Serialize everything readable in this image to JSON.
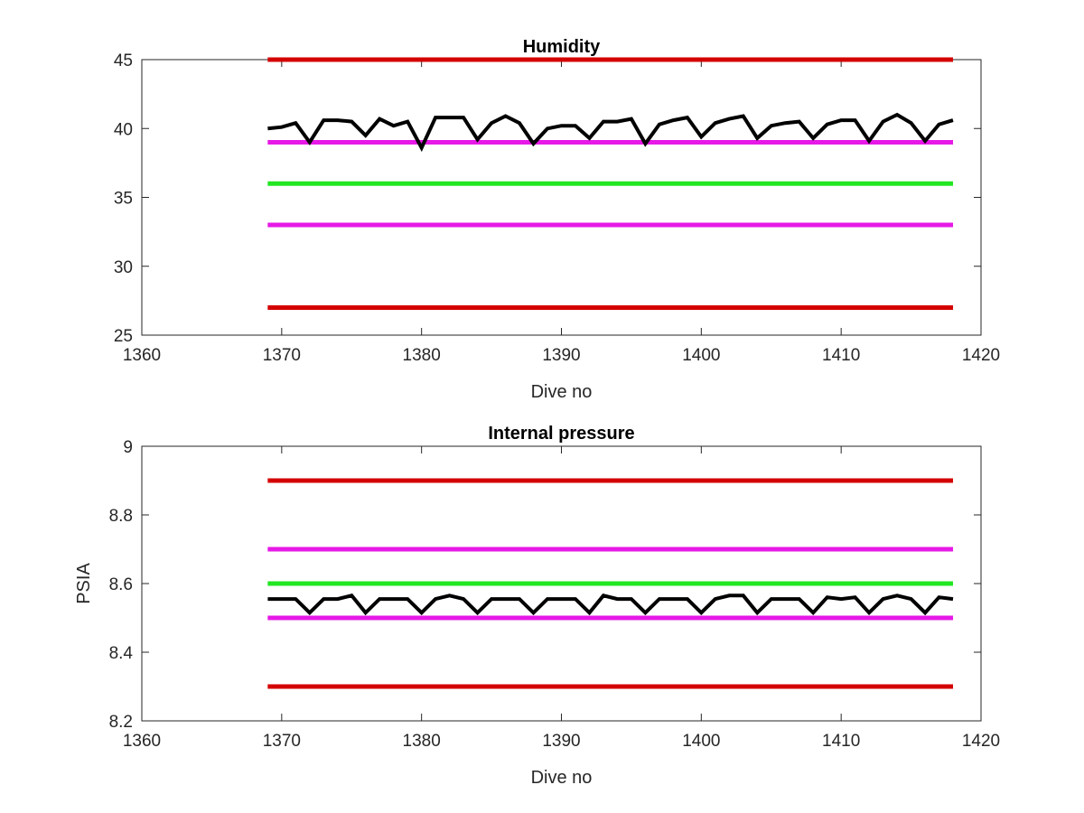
{
  "chart_data": [
    {
      "type": "line",
      "title": "Humidity",
      "xlabel": "Dive no",
      "ylabel": "",
      "xlim": [
        1360,
        1420
      ],
      "ylim": [
        25,
        45
      ],
      "xticks": [
        1360,
        1370,
        1380,
        1390,
        1400,
        1410,
        1420
      ],
      "yticks": [
        25,
        30,
        35,
        40,
        45
      ],
      "grid": false,
      "legend": "none",
      "reference_lines": [
        {
          "y": 45,
          "x": [
            1369,
            1418
          ],
          "color": "#d40000"
        },
        {
          "y": 39,
          "x": [
            1369,
            1418
          ],
          "color": "#e619e6"
        },
        {
          "y": 36,
          "x": [
            1369,
            1418
          ],
          "color": "#22e622"
        },
        {
          "y": 33,
          "x": [
            1369,
            1418
          ],
          "color": "#e619e6"
        },
        {
          "y": 27,
          "x": [
            1369,
            1418
          ],
          "color": "#d40000"
        }
      ],
      "series": [
        {
          "color": "#000000",
          "x": [
            1369,
            1370,
            1371,
            1372,
            1373,
            1374,
            1375,
            1376,
            1377,
            1378,
            1379,
            1380,
            1381,
            1382,
            1383,
            1384,
            1385,
            1386,
            1387,
            1388,
            1389,
            1390,
            1391,
            1392,
            1393,
            1394,
            1395,
            1396,
            1397,
            1398,
            1399,
            1400,
            1401,
            1402,
            1403,
            1404,
            1405,
            1406,
            1407,
            1408,
            1409,
            1410,
            1411,
            1412,
            1413,
            1414,
            1415,
            1416,
            1417,
            1418
          ],
          "y": [
            40.0,
            40.1,
            40.4,
            39.0,
            40.6,
            40.6,
            40.5,
            39.5,
            40.7,
            40.2,
            40.5,
            38.6,
            40.8,
            40.8,
            40.8,
            39.2,
            40.4,
            40.9,
            40.4,
            38.9,
            40.0,
            40.2,
            40.2,
            39.3,
            40.5,
            40.5,
            40.7,
            38.9,
            40.3,
            40.6,
            40.8,
            39.4,
            40.4,
            40.7,
            40.9,
            39.3,
            40.2,
            40.4,
            40.5,
            39.3,
            40.3,
            40.6,
            40.6,
            39.1,
            40.5,
            41.0,
            40.4,
            39.1,
            40.3,
            40.6
          ]
        }
      ]
    },
    {
      "type": "line",
      "title": "Internal pressure",
      "xlabel": "Dive no",
      "ylabel": "PSIA",
      "xlim": [
        1360,
        1420
      ],
      "ylim": [
        8.2,
        9
      ],
      "xticks": [
        1360,
        1370,
        1380,
        1390,
        1400,
        1410,
        1420
      ],
      "yticks": [
        8.2,
        8.4,
        8.6,
        8.8,
        9
      ],
      "grid": false,
      "legend": "none",
      "reference_lines": [
        {
          "y": 8.9,
          "x": [
            1369,
            1418
          ],
          "color": "#d40000"
        },
        {
          "y": 8.7,
          "x": [
            1369,
            1418
          ],
          "color": "#e619e6"
        },
        {
          "y": 8.6,
          "x": [
            1369,
            1418
          ],
          "color": "#22e622"
        },
        {
          "y": 8.5,
          "x": [
            1369,
            1418
          ],
          "color": "#e619e6"
        },
        {
          "y": 8.3,
          "x": [
            1369,
            1418
          ],
          "color": "#d40000"
        }
      ],
      "series": [
        {
          "color": "#000000",
          "x": [
            1369,
            1370,
            1371,
            1372,
            1373,
            1374,
            1375,
            1376,
            1377,
            1378,
            1379,
            1380,
            1381,
            1382,
            1383,
            1384,
            1385,
            1386,
            1387,
            1388,
            1389,
            1390,
            1391,
            1392,
            1393,
            1394,
            1395,
            1396,
            1397,
            1398,
            1399,
            1400,
            1401,
            1402,
            1403,
            1404,
            1405,
            1406,
            1407,
            1408,
            1409,
            1410,
            1411,
            1412,
            1413,
            1414,
            1415,
            1416,
            1417,
            1418
          ],
          "y": [
            8.555,
            8.555,
            8.555,
            8.515,
            8.555,
            8.555,
            8.565,
            8.515,
            8.555,
            8.555,
            8.555,
            8.515,
            8.555,
            8.565,
            8.555,
            8.515,
            8.555,
            8.555,
            8.555,
            8.515,
            8.555,
            8.555,
            8.555,
            8.515,
            8.565,
            8.555,
            8.555,
            8.515,
            8.555,
            8.555,
            8.555,
            8.515,
            8.555,
            8.565,
            8.565,
            8.515,
            8.555,
            8.555,
            8.555,
            8.515,
            8.56,
            8.555,
            8.56,
            8.515,
            8.555,
            8.565,
            8.555,
            8.515,
            8.56,
            8.555
          ]
        }
      ]
    }
  ]
}
